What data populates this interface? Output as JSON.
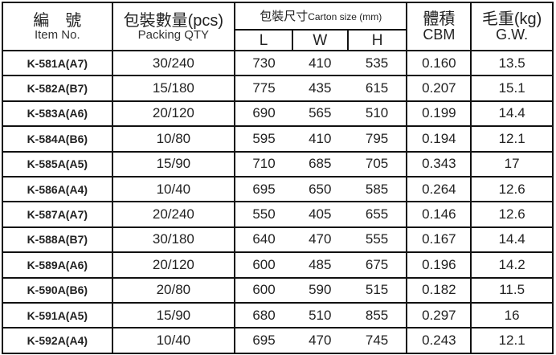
{
  "headers": {
    "item_zh": "編　號",
    "item_en": "Item No.",
    "qty_zh": "包裝數量(pcs)",
    "qty_en": "Packing QTY",
    "carton_zh": "包裝尺寸",
    "carton_en": "Carton size (mm)",
    "l": "L",
    "w": "W",
    "h": "H",
    "cbm_zh": "體積",
    "cbm_en": "CBM",
    "gw_zh": "毛重(kg)",
    "gw_en": "G.W."
  },
  "rows": [
    {
      "item": "K-581A(A7)",
      "qty": "30/240",
      "l": "730",
      "w": "410",
      "h": "535",
      "cbm": "0.160",
      "gw": "13.5"
    },
    {
      "item": "K-582A(B7)",
      "qty": "15/180",
      "l": "775",
      "w": "435",
      "h": "615",
      "cbm": "0.207",
      "gw": "15.1"
    },
    {
      "item": "K-583A(A6)",
      "qty": "20/120",
      "l": "690",
      "w": "565",
      "h": "510",
      "cbm": "0.199",
      "gw": "14.4"
    },
    {
      "item": "K-584A(B6)",
      "qty": "10/80",
      "l": "595",
      "w": "410",
      "h": "795",
      "cbm": "0.194",
      "gw": "12.1"
    },
    {
      "item": "K-585A(A5)",
      "qty": "15/90",
      "l": "710",
      "w": "685",
      "h": "705",
      "cbm": "0.343",
      "gw": "17"
    },
    {
      "item": "K-586A(A4)",
      "qty": "10/40",
      "l": "695",
      "w": "650",
      "h": "585",
      "cbm": "0.264",
      "gw": "12.6"
    },
    {
      "item": "K-587A(A7)",
      "qty": "20/240",
      "l": "550",
      "w": "405",
      "h": "655",
      "cbm": "0.146",
      "gw": "12.6"
    },
    {
      "item": "K-588A(B7)",
      "qty": "30/180",
      "l": "640",
      "w": "470",
      "h": "555",
      "cbm": "0.167",
      "gw": "14.4"
    },
    {
      "item": "K-589A(A6)",
      "qty": "20/120",
      "l": "600",
      "w": "485",
      "h": "675",
      "cbm": "0.196",
      "gw": "14.2"
    },
    {
      "item": "K-590A(B6)",
      "qty": "20/80",
      "l": "600",
      "w": "590",
      "h": "515",
      "cbm": "0.182",
      "gw": "11.5"
    },
    {
      "item": "K-591A(A5)",
      "qty": "15/90",
      "l": "680",
      "w": "510",
      "h": "855",
      "cbm": "0.297",
      "gw": "16"
    },
    {
      "item": "K-592A(A4)",
      "qty": "10/40",
      "l": "695",
      "w": "470",
      "h": "745",
      "cbm": "0.243",
      "gw": "12.1"
    }
  ]
}
